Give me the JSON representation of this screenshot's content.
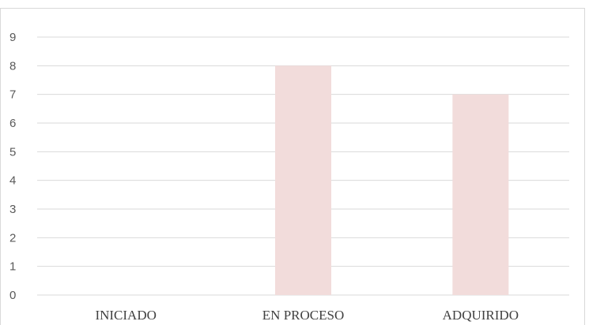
{
  "chart_data": {
    "type": "bar",
    "categories": [
      "INICIADO",
      "EN PROCESO",
      "ADQUIRIDO"
    ],
    "values": [
      0,
      8,
      7
    ],
    "ylim": [
      0,
      9
    ],
    "yticks": [
      0,
      1,
      2,
      3,
      4,
      5,
      6,
      7,
      8,
      9
    ],
    "grid": true,
    "bar_color": "#f2dcdb",
    "title": "",
    "xlabel": "",
    "ylabel": ""
  }
}
